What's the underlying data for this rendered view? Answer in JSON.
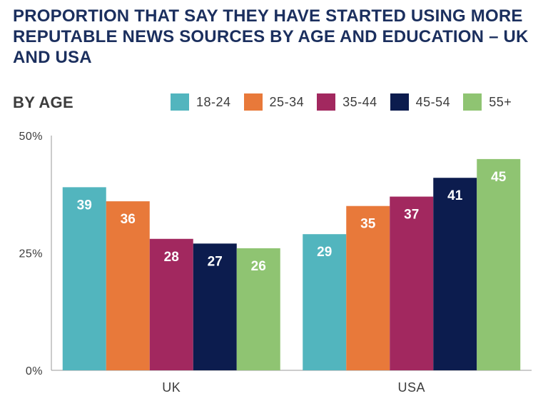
{
  "chart_data": {
    "type": "bar",
    "title": "PROPORTION THAT SAY THEY HAVE STARTED USING MORE REPUTABLE NEWS SOURCES BY AGE AND EDUCATION – UK AND USA",
    "section_label": "BY AGE",
    "categories": [
      "UK",
      "USA"
    ],
    "series": [
      {
        "name": "18-24",
        "color": "#52b5be",
        "values": [
          39,
          29
        ]
      },
      {
        "name": "25-34",
        "color": "#e8793a",
        "values": [
          36,
          35
        ]
      },
      {
        "name": "35-44",
        "color": "#a2285f",
        "values": [
          28,
          37
        ]
      },
      {
        "name": "45-54",
        "color": "#0c1c4e",
        "values": [
          27,
          41
        ]
      },
      {
        "name": "55+",
        "color": "#8fc472",
        "values": [
          26,
          45
        ]
      }
    ],
    "yticks": [
      {
        "value": 0,
        "label": "0%"
      },
      {
        "value": 25,
        "label": "25%"
      },
      {
        "value": 50,
        "label": "50%"
      }
    ],
    "ylim": [
      0,
      50
    ],
    "grid": false,
    "legend_position": "top-right"
  }
}
